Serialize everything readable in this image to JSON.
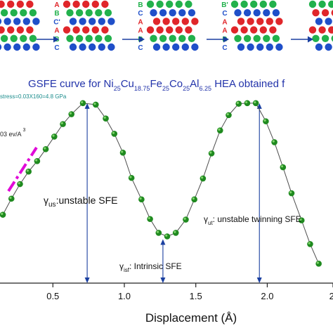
{
  "stacking_panels": [
    {
      "rows": [
        {
          "label": "",
          "color": "#e0262a"
        },
        {
          "label": "",
          "color": "#22b14c"
        },
        {
          "label": "",
          "color": "#1f4fc9"
        },
        {
          "label": "",
          "color": "#e0262a"
        },
        {
          "label": "",
          "color": "#22b14c"
        },
        {
          "label": "",
          "color": "#1f4fc9"
        }
      ]
    },
    {
      "rows": [
        {
          "label": "A",
          "color": "#e0262a"
        },
        {
          "label": "B",
          "color": "#22b14c"
        },
        {
          "label": "C'",
          "color": "#1f4fc9"
        },
        {
          "label": "A",
          "color": "#e0262a"
        },
        {
          "label": "B",
          "color": "#22b14c"
        },
        {
          "label": "C",
          "color": "#1f4fc9"
        }
      ]
    },
    {
      "rows": [
        {
          "label": "B",
          "color": "#22b14c"
        },
        {
          "label": "C",
          "color": "#1f4fc9"
        },
        {
          "label": "A",
          "color": "#e0262a"
        },
        {
          "label": "A",
          "color": "#e0262a"
        },
        {
          "label": "B",
          "color": "#22b14c"
        },
        {
          "label": "C",
          "color": "#1f4fc9"
        }
      ]
    },
    {
      "rows": [
        {
          "label": "B'",
          "color": "#22b14c"
        },
        {
          "label": "C",
          "color": "#1f4fc9"
        },
        {
          "label": "A",
          "color": "#e0262a"
        },
        {
          "label": "A",
          "color": "#e0262a"
        },
        {
          "label": "B",
          "color": "#22b14c"
        },
        {
          "label": "C",
          "color": "#1f4fc9"
        }
      ]
    },
    {
      "rows": [
        {
          "label": "",
          "color": "#22b14c"
        },
        {
          "label": "",
          "color": "#e0262a"
        },
        {
          "label": "",
          "color": "#1f4fc9"
        },
        {
          "label": "",
          "color": "#e0262a"
        },
        {
          "label": "",
          "color": "#22b14c"
        },
        {
          "label": "",
          "color": "#1f4fc9"
        }
      ]
    }
  ],
  "title": {
    "parts": [
      {
        "text": "GSFE curve for Ni",
        "sub": false
      },
      {
        "text": "25",
        "sub": true
      },
      {
        "text": "Cu",
        "sub": false
      },
      {
        "text": "18.75",
        "sub": true
      },
      {
        "text": "Fe",
        "sub": false
      },
      {
        "text": "25",
        "sub": true
      },
      {
        "text": "Co",
        "sub": false
      },
      {
        "text": "25",
        "sub": true
      },
      {
        "text": "Al",
        "sub": false
      },
      {
        "text": "6.25",
        "sub": true
      },
      {
        "text": " HEA  obtained f",
        "sub": false
      }
    ]
  },
  "annotations": {
    "stress": "stress=0.03X160=4.8 GPa",
    "slope_main": "03 ev/A",
    "slope_sup": "3",
    "us": {
      "symbol": "γ",
      "sub": "us",
      "text": ":unstable SFE"
    },
    "isf": {
      "symbol": "γ",
      "sub": "isf",
      "text": ": Intrinsic SFE"
    },
    "ut": {
      "symbol": "γ",
      "sub": "ut",
      "text": ": unstable twinning SFE"
    }
  },
  "colors": {
    "curve": "#4d4d4d",
    "marker": "#1f8a1f",
    "marker_highlight": "#7fd36b",
    "arrow": "#1a3fa0",
    "slope": "#e00ad8",
    "title": "#2233aa",
    "stress": "#1a8c8c"
  },
  "chart_data": {
    "type": "scatter",
    "xlabel": "Displacement (Å)",
    "ylabel": "",
    "xlim": [
      0.13,
      2.46
    ],
    "ylim": [
      0,
      1
    ],
    "xticks": [
      {
        "value": 0.5,
        "label": "0.5"
      },
      {
        "value": 1.0,
        "label": "1.0"
      },
      {
        "value": 1.5,
        "label": "1.5"
      },
      {
        "value": 2.0,
        "label": "2.0"
      },
      {
        "value": 2.46,
        "label": "2."
      }
    ],
    "grid": false,
    "series": [
      {
        "x": [
          0.15,
          0.21,
          0.27,
          0.33,
          0.39,
          0.45,
          0.51,
          0.57,
          0.63,
          0.71,
          0.8,
          0.87,
          0.93,
          0.99,
          1.05,
          1.12,
          1.18,
          1.24,
          1.3,
          1.36,
          1.43,
          1.49,
          1.55,
          1.61,
          1.67,
          1.73,
          1.8,
          1.86,
          1.92,
          1.99,
          2.05,
          2.11,
          2.17,
          2.24,
          2.3,
          2.36
        ],
        "y": [
          0.366,
          0.452,
          0.53,
          0.597,
          0.653,
          0.717,
          0.784,
          0.851,
          0.904,
          0.963,
          0.955,
          0.881,
          0.799,
          0.698,
          0.563,
          0.448,
          0.343,
          0.269,
          0.25,
          0.269,
          0.34,
          0.448,
          0.56,
          0.694,
          0.817,
          0.899,
          0.96,
          0.963,
          0.963,
          0.866,
          0.754,
          0.62,
          0.481,
          0.336,
          0.209,
          0.104
        ]
      }
    ]
  }
}
